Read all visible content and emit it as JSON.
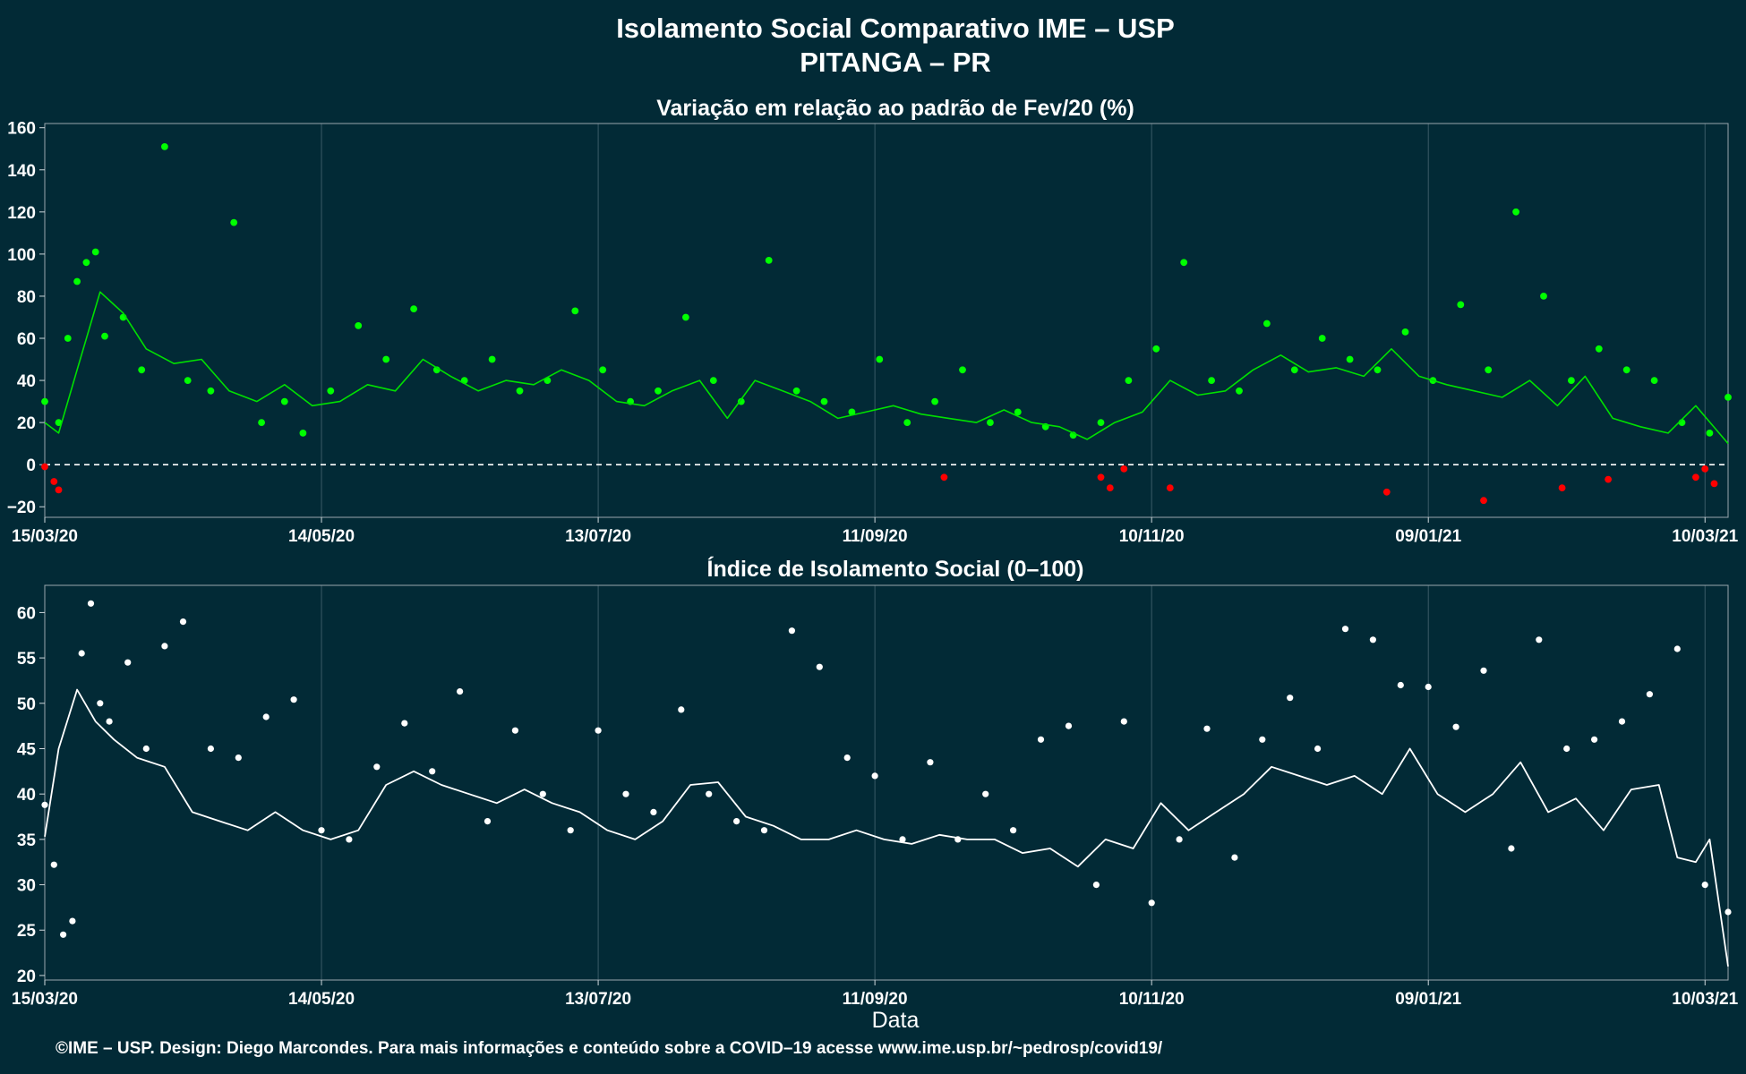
{
  "header": {
    "title": "Isolamento Social Comparativo IME – USP",
    "subtitle": "PITANGA – PR"
  },
  "footer": {
    "credit": "©IME – USP. Design: Diego Marcondes. Para mais informações e conteúdo sobre a COVID–19 acesse www.ime.usp.br/~pedrosp/covid19/"
  },
  "colors": {
    "background": "#022a36",
    "positive_points": "#00ff00",
    "negative_points": "#ff0000",
    "index_points": "#ffffff",
    "moving_average_top": "#00e000",
    "moving_average_bottom": "#ffffff"
  },
  "chart_data": [
    {
      "type": "scatter",
      "title": "Variação em relação ao padrão de Fev/20 (%)",
      "xlabel": "",
      "ylabel": "",
      "x_range": [
        "2020-03-15",
        "2021-03-15"
      ],
      "ylim": [
        -25,
        162
      ],
      "yticks": [
        -20,
        0,
        20,
        40,
        60,
        80,
        100,
        120,
        140,
        160
      ],
      "xticks": [
        "15/03/20",
        "14/05/20",
        "13/07/20",
        "11/09/20",
        "10/11/20",
        "09/01/21",
        "10/03/21"
      ],
      "reference_line": 0,
      "grid": "vertical",
      "series": [
        {
          "name": "",
          "kind": "points",
          "x": [
            "2020-03-15",
            "2020-03-18",
            "2020-03-20",
            "2020-03-22",
            "2020-03-24",
            "2020-03-26",
            "2020-03-28",
            "2020-04-01",
            "2020-04-05",
            "2020-04-10",
            "2020-04-15",
            "2020-04-20",
            "2020-04-25",
            "2020-05-01",
            "2020-05-06",
            "2020-05-10",
            "2020-05-16",
            "2020-05-22",
            "2020-05-28",
            "2020-06-03",
            "2020-06-08",
            "2020-06-14",
            "2020-06-20",
            "2020-06-26",
            "2020-07-02",
            "2020-07-08",
            "2020-07-14",
            "2020-07-20",
            "2020-07-26",
            "2020-08-01",
            "2020-08-07",
            "2020-08-13",
            "2020-08-19",
            "2020-08-25",
            "2020-08-31",
            "2020-09-06",
            "2020-09-12",
            "2020-09-18",
            "2020-09-24",
            "2020-09-30",
            "2020-10-06",
            "2020-10-12",
            "2020-10-18",
            "2020-10-24",
            "2020-10-30",
            "2020-11-05",
            "2020-11-11",
            "2020-11-17",
            "2020-11-23",
            "2020-11-29",
            "2020-12-05",
            "2020-12-11",
            "2020-12-17",
            "2020-12-23",
            "2020-12-29",
            "2021-01-04",
            "2021-01-10",
            "2021-01-16",
            "2021-01-22",
            "2021-01-28",
            "2021-02-03",
            "2021-02-09",
            "2021-02-15",
            "2021-02-21",
            "2021-02-27",
            "2021-03-05",
            "2021-03-11",
            "2021-03-15"
          ],
          "values": [
            30,
            20,
            60,
            87,
            96,
            101,
            61,
            70,
            45,
            151,
            40,
            35,
            115,
            20,
            30,
            15,
            35,
            66,
            50,
            74,
            45,
            40,
            50,
            35,
            40,
            73,
            45,
            30,
            35,
            70,
            40,
            30,
            97,
            35,
            30,
            25,
            50,
            20,
            30,
            45,
            20,
            25,
            18,
            14,
            20,
            40,
            55,
            96,
            40,
            35,
            67,
            45,
            60,
            50,
            45,
            63,
            40,
            76,
            45,
            120,
            80,
            40,
            55,
            45,
            40,
            20,
            15,
            32
          ]
        },
        {
          "name": "",
          "kind": "negative-points",
          "x": [
            "2020-03-15",
            "2020-03-17",
            "2020-03-18",
            "2020-09-26",
            "2020-10-30",
            "2020-11-01",
            "2020-11-04",
            "2020-11-14",
            "2020-12-31",
            "2021-01-21",
            "2021-02-07",
            "2021-02-17",
            "2021-03-08",
            "2021-03-10",
            "2021-03-12"
          ],
          "values": [
            -1,
            -8,
            -12,
            -6,
            -6,
            -11,
            -2,
            -11,
            -13,
            -17,
            -11,
            -7,
            -6,
            -2,
            -9
          ]
        },
        {
          "name": "",
          "kind": "moving-average",
          "x": [
            "2020-03-15",
            "2020-03-18",
            "2020-03-22",
            "2020-03-27",
            "2020-04-01",
            "2020-04-06",
            "2020-04-12",
            "2020-04-18",
            "2020-04-24",
            "2020-04-30",
            "2020-05-06",
            "2020-05-12",
            "2020-05-18",
            "2020-05-24",
            "2020-05-30",
            "2020-06-05",
            "2020-06-11",
            "2020-06-17",
            "2020-06-23",
            "2020-06-29",
            "2020-07-05",
            "2020-07-11",
            "2020-07-17",
            "2020-07-23",
            "2020-07-29",
            "2020-08-04",
            "2020-08-10",
            "2020-08-16",
            "2020-08-22",
            "2020-08-28",
            "2020-09-03",
            "2020-09-09",
            "2020-09-15",
            "2020-09-21",
            "2020-09-27",
            "2020-10-03",
            "2020-10-09",
            "2020-10-15",
            "2020-10-21",
            "2020-10-27",
            "2020-11-02",
            "2020-11-08",
            "2020-11-14",
            "2020-11-20",
            "2020-11-26",
            "2020-12-02",
            "2020-12-08",
            "2020-12-14",
            "2020-12-20",
            "2020-12-26",
            "2021-01-01",
            "2021-01-07",
            "2021-01-13",
            "2021-01-19",
            "2021-01-25",
            "2021-01-31",
            "2021-02-06",
            "2021-02-12",
            "2021-02-18",
            "2021-02-24",
            "2021-03-02",
            "2021-03-08",
            "2021-03-15"
          ],
          "values": [
            20,
            15,
            45,
            82,
            72,
            55,
            48,
            50,
            35,
            30,
            38,
            28,
            30,
            38,
            35,
            50,
            42,
            35,
            40,
            38,
            45,
            40,
            30,
            28,
            35,
            40,
            22,
            40,
            35,
            30,
            22,
            25,
            28,
            24,
            22,
            20,
            26,
            20,
            18,
            12,
            20,
            25,
            40,
            33,
            35,
            45,
            52,
            44,
            46,
            42,
            55,
            42,
            38,
            35,
            32,
            40,
            28,
            42,
            22,
            18,
            15,
            28,
            10
          ]
        }
      ]
    },
    {
      "type": "scatter",
      "title": "Índice de Isolamento Social (0–100)",
      "xlabel": "Data",
      "ylabel": "",
      "x_range": [
        "2020-03-15",
        "2021-03-15"
      ],
      "ylim": [
        19.5,
        63
      ],
      "yticks": [
        20,
        25,
        30,
        35,
        40,
        45,
        50,
        55,
        60
      ],
      "xticks": [
        "15/03/20",
        "14/05/20",
        "13/07/20",
        "11/09/20",
        "10/11/20",
        "09/01/21",
        "10/03/21"
      ],
      "grid": "vertical",
      "series": [
        {
          "name": "",
          "kind": "points",
          "x": [
            "2020-03-15",
            "2020-03-17",
            "2020-03-19",
            "2020-03-21",
            "2020-03-23",
            "2020-03-25",
            "2020-03-27",
            "2020-03-29",
            "2020-04-02",
            "2020-04-06",
            "2020-04-10",
            "2020-04-14",
            "2020-04-20",
            "2020-04-26",
            "2020-05-02",
            "2020-05-08",
            "2020-05-14",
            "2020-05-20",
            "2020-05-26",
            "2020-06-01",
            "2020-06-07",
            "2020-06-13",
            "2020-06-19",
            "2020-06-25",
            "2020-07-01",
            "2020-07-07",
            "2020-07-13",
            "2020-07-19",
            "2020-07-25",
            "2020-07-31",
            "2020-08-06",
            "2020-08-12",
            "2020-08-18",
            "2020-08-24",
            "2020-08-30",
            "2020-09-05",
            "2020-09-11",
            "2020-09-17",
            "2020-09-23",
            "2020-09-29",
            "2020-10-05",
            "2020-10-11",
            "2020-10-17",
            "2020-10-23",
            "2020-10-29",
            "2020-11-04",
            "2020-11-10",
            "2020-11-16",
            "2020-11-22",
            "2020-11-28",
            "2020-12-04",
            "2020-12-10",
            "2020-12-16",
            "2020-12-22",
            "2020-12-28",
            "2021-01-03",
            "2021-01-09",
            "2021-01-15",
            "2021-01-21",
            "2021-01-27",
            "2021-02-02",
            "2021-02-08",
            "2021-02-14",
            "2021-02-20",
            "2021-02-26",
            "2021-03-04",
            "2021-03-10",
            "2021-03-15"
          ],
          "values": [
            38.8,
            32.2,
            24.5,
            26,
            55.5,
            61,
            50,
            48,
            54.5,
            45,
            56.3,
            59,
            45,
            44,
            48.5,
            50.4,
            36,
            35,
            43,
            47.8,
            42.5,
            51.3,
            37,
            47,
            40,
            36,
            47,
            40,
            38,
            49.3,
            40,
            37,
            36,
            58,
            54,
            44,
            42,
            35,
            43.5,
            35,
            40,
            36,
            46,
            47.5,
            30,
            48,
            28,
            35,
            47.2,
            33,
            46,
            50.6,
            45,
            58.2,
            57,
            52,
            51.8,
            47.4,
            53.6,
            34,
            57,
            45,
            46,
            48,
            51,
            56,
            30,
            27
          ]
        },
        {
          "name": "",
          "kind": "moving-average",
          "x": [
            "2020-03-15",
            "2020-03-18",
            "2020-03-22",
            "2020-03-26",
            "2020-03-30",
            "2020-04-04",
            "2020-04-10",
            "2020-04-16",
            "2020-04-22",
            "2020-04-28",
            "2020-05-04",
            "2020-05-10",
            "2020-05-16",
            "2020-05-22",
            "2020-05-28",
            "2020-06-03",
            "2020-06-09",
            "2020-06-15",
            "2020-06-21",
            "2020-06-27",
            "2020-07-03",
            "2020-07-09",
            "2020-07-15",
            "2020-07-21",
            "2020-07-27",
            "2020-08-02",
            "2020-08-08",
            "2020-08-14",
            "2020-08-20",
            "2020-08-26",
            "2020-09-01",
            "2020-09-07",
            "2020-09-13",
            "2020-09-19",
            "2020-09-25",
            "2020-10-01",
            "2020-10-07",
            "2020-10-13",
            "2020-10-19",
            "2020-10-25",
            "2020-10-31",
            "2020-11-06",
            "2020-11-12",
            "2020-11-18",
            "2020-11-24",
            "2020-11-30",
            "2020-12-06",
            "2020-12-12",
            "2020-12-18",
            "2020-12-24",
            "2020-12-30",
            "2021-01-05",
            "2021-01-11",
            "2021-01-17",
            "2021-01-23",
            "2021-01-29",
            "2021-02-04",
            "2021-02-10",
            "2021-02-16",
            "2021-02-22",
            "2021-02-28",
            "2021-03-04",
            "2021-03-08",
            "2021-03-11",
            "2021-03-15"
          ],
          "values": [
            35.3,
            45,
            51.5,
            48,
            46,
            44,
            43,
            38,
            37,
            36,
            38,
            36,
            35,
            36,
            41,
            42.5,
            41,
            40,
            39,
            40.5,
            39,
            38,
            36,
            35,
            37,
            41,
            41.3,
            37.5,
            36.5,
            35,
            35,
            36,
            35,
            34.5,
            35.5,
            35,
            35,
            33.5,
            34,
            32,
            35,
            34,
            39,
            36,
            38,
            40,
            43,
            42,
            41,
            42,
            40,
            45,
            40,
            38,
            40,
            43.5,
            38,
            39.5,
            36,
            40.5,
            41,
            33,
            32.5,
            35,
            21
          ]
        }
      ]
    }
  ]
}
